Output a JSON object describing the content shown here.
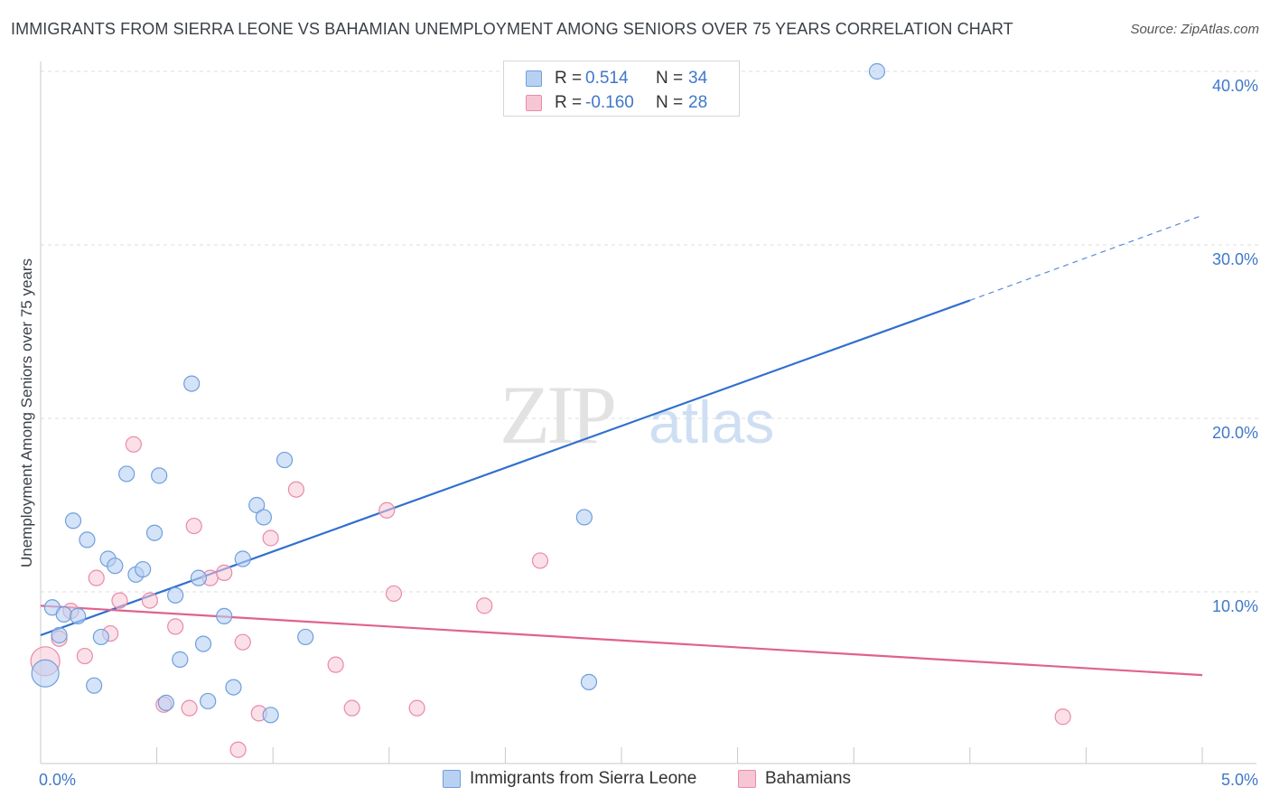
{
  "header": {
    "title": "IMMIGRANTS FROM SIERRA LEONE VS BAHAMIAN UNEMPLOYMENT AMONG SENIORS OVER 75 YEARS CORRELATION CHART",
    "source": "Source: ZipAtlas.com"
  },
  "watermark": {
    "zip": "ZIP",
    "atlas": "atlas"
  },
  "legend": {
    "rows": [
      {
        "r_label": "R =",
        "r_value": "0.514",
        "n_label": "N =",
        "n_value": "34"
      },
      {
        "r_label": "R =",
        "r_value": "-0.160",
        "n_label": "N =",
        "n_value": "28"
      }
    ]
  },
  "bottom_legend": {
    "series1": "Immigrants from Sierra Leone",
    "series2": "Bahamians"
  },
  "colors": {
    "blue_fill": "#b8d1f3",
    "blue_stroke": "#6f9fdc",
    "blue_line": "#2f6fce",
    "pink_fill": "#f7c6d5",
    "pink_stroke": "#e88ba8",
    "pink_line": "#e0628e",
    "tick_text": "#3f78c9",
    "grid": "#dcdcdc"
  },
  "chart_data": {
    "type": "scatter",
    "title": "IMMIGRANTS FROM SIERRA LEONE VS BAHAMIAN UNEMPLOYMENT AMONG SENIORS OVER 75 YEARS CORRELATION CHART",
    "xlabel": "",
    "ylabel": "Unemployment Among Seniors over 75 years",
    "xlim": [
      0,
      5.0
    ],
    "ylim": [
      0,
      41
    ],
    "x_tick_labels": [
      "0.0%",
      "5.0%"
    ],
    "y_ticks": [
      10,
      20,
      30,
      40
    ],
    "y_tick_labels": [
      "10.0%",
      "20.0%",
      "30.0%",
      "40.0%"
    ],
    "grid": true,
    "legend_position": "top-center",
    "series": [
      {
        "name": "Immigrants from Sierra Leone",
        "r": 0.514,
        "n": 34,
        "points": [
          [
            0.02,
            5.3
          ],
          [
            0.05,
            9.1
          ],
          [
            0.08,
            7.5
          ],
          [
            0.1,
            8.7
          ],
          [
            0.14,
            14.1
          ],
          [
            0.16,
            8.6
          ],
          [
            0.2,
            13.0
          ],
          [
            0.23,
            4.6
          ],
          [
            0.26,
            7.4
          ],
          [
            0.29,
            11.9
          ],
          [
            0.32,
            11.5
          ],
          [
            0.37,
            16.8
          ],
          [
            0.41,
            11.0
          ],
          [
            0.44,
            11.3
          ],
          [
            0.49,
            13.4
          ],
          [
            0.51,
            16.7
          ],
          [
            0.54,
            3.6
          ],
          [
            0.58,
            9.8
          ],
          [
            0.6,
            6.1
          ],
          [
            0.65,
            22.0
          ],
          [
            0.68,
            10.8
          ],
          [
            0.7,
            7.0
          ],
          [
            0.72,
            3.7
          ],
          [
            0.79,
            8.6
          ],
          [
            0.83,
            4.5
          ],
          [
            0.87,
            11.9
          ],
          [
            0.93,
            15.0
          ],
          [
            0.96,
            14.3
          ],
          [
            0.99,
            2.9
          ],
          [
            1.05,
            17.6
          ],
          [
            1.14,
            7.4
          ],
          [
            2.34,
            14.3
          ],
          [
            2.36,
            4.8
          ],
          [
            3.6,
            40.0
          ]
        ],
        "trend": {
          "x0": 0.0,
          "y0": 7.5,
          "x1": 4.0,
          "y1": 26.8,
          "x_dash_end": 5.0,
          "y_dash_end": 31.7
        }
      },
      {
        "name": "Bahamians",
        "r": -0.16,
        "n": 28,
        "points": [
          [
            0.02,
            6.0
          ],
          [
            0.08,
            7.3
          ],
          [
            0.13,
            8.9
          ],
          [
            0.19,
            6.3
          ],
          [
            0.24,
            10.8
          ],
          [
            0.3,
            7.6
          ],
          [
            0.34,
            9.5
          ],
          [
            0.4,
            18.5
          ],
          [
            0.47,
            9.5
          ],
          [
            0.53,
            3.5
          ],
          [
            0.58,
            8.0
          ],
          [
            0.64,
            3.3
          ],
          [
            0.66,
            13.8
          ],
          [
            0.73,
            10.8
          ],
          [
            0.79,
            11.1
          ],
          [
            0.85,
            0.9
          ],
          [
            0.87,
            7.1
          ],
          [
            0.94,
            3.0
          ],
          [
            0.99,
            13.1
          ],
          [
            1.1,
            15.9
          ],
          [
            1.27,
            5.8
          ],
          [
            1.34,
            3.3
          ],
          [
            1.49,
            14.7
          ],
          [
            1.52,
            9.9
          ],
          [
            1.62,
            3.3
          ],
          [
            1.91,
            9.2
          ],
          [
            2.15,
            11.8
          ],
          [
            4.4,
            2.8
          ]
        ],
        "trend": {
          "x0": 0.0,
          "y0": 9.2,
          "x1": 5.0,
          "y1": 5.2
        }
      }
    ]
  }
}
